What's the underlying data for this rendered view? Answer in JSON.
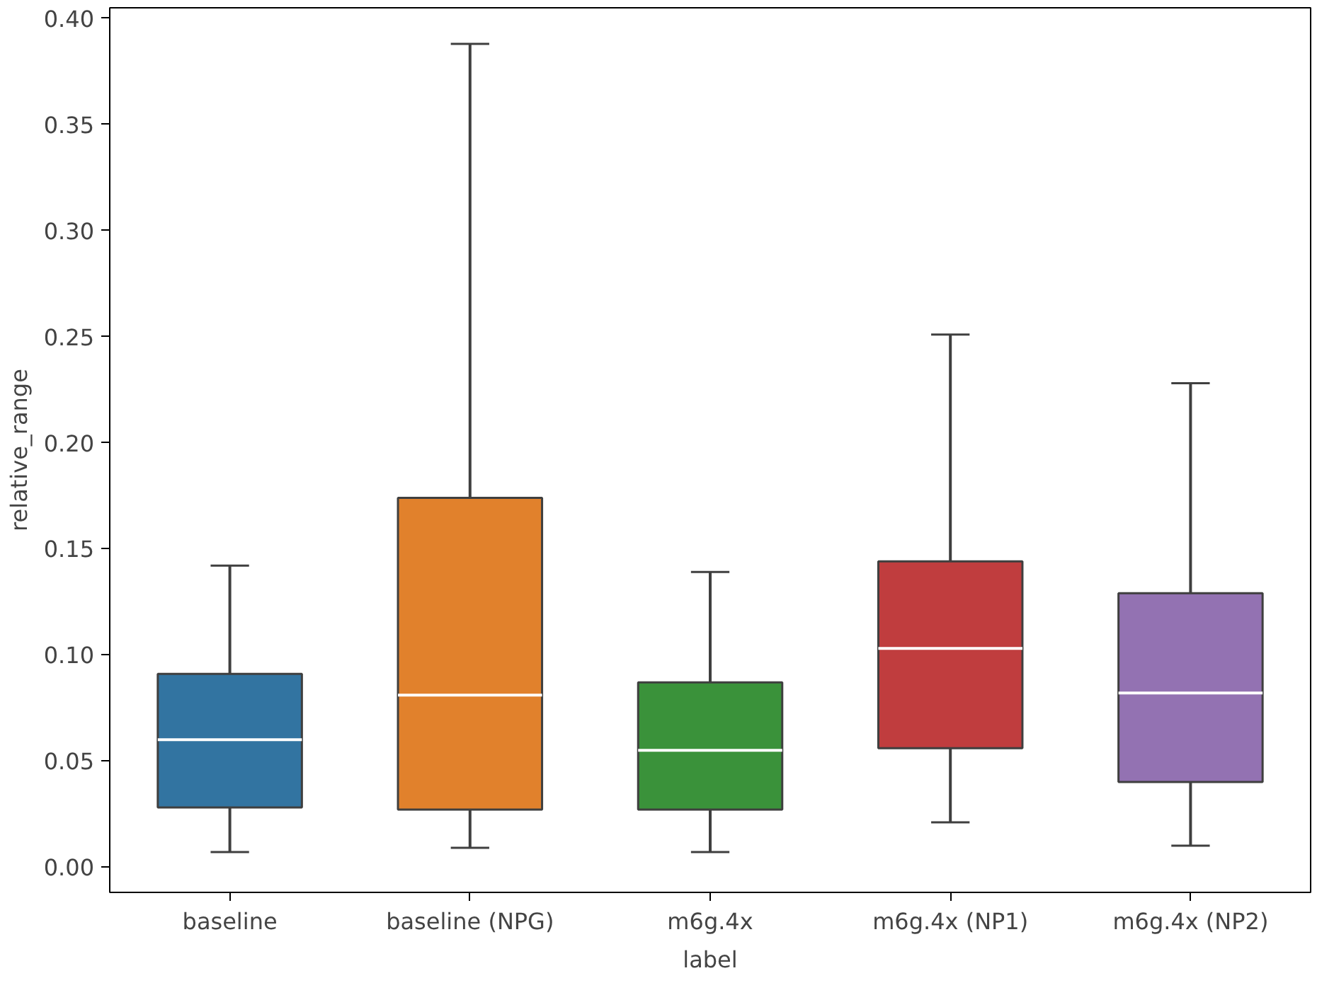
{
  "chart_data": {
    "type": "box",
    "xlabel": "label",
    "ylabel": "relative_range",
    "categories": [
      "baseline",
      "baseline (NPG)",
      "m6g.4x",
      "m6g.4x (NP1)",
      "m6g.4x (NP2)"
    ],
    "colors": [
      "#3274a1",
      "#e1812c",
      "#3a923a",
      "#c03d3e",
      "#9372b2"
    ],
    "boxes": [
      {
        "low": 0.007,
        "q1": 0.028,
        "median": 0.06,
        "q3": 0.091,
        "high": 0.142
      },
      {
        "low": 0.009,
        "q1": 0.027,
        "median": 0.081,
        "q3": 0.174,
        "high": 0.388
      },
      {
        "low": 0.007,
        "q1": 0.027,
        "median": 0.055,
        "q3": 0.087,
        "high": 0.139
      },
      {
        "low": 0.021,
        "q1": 0.056,
        "median": 0.103,
        "q3": 0.144,
        "high": 0.251
      },
      {
        "low": 0.01,
        "q1": 0.04,
        "median": 0.082,
        "q3": 0.129,
        "high": 0.228
      }
    ],
    "ylim": [
      -0.012,
      0.405
    ],
    "yticks": [
      {
        "value": 0,
        "label": "0.00"
      },
      0.05,
      {
        "value": 0.1,
        "label": "0.10"
      },
      0.15,
      {
        "value": 0.2,
        "label": "0.20"
      },
      0.25,
      {
        "value": 0.3,
        "label": "0.30"
      },
      0.35,
      {
        "value": 0.4,
        "label": "0.40"
      }
    ],
    "grid": false
  }
}
